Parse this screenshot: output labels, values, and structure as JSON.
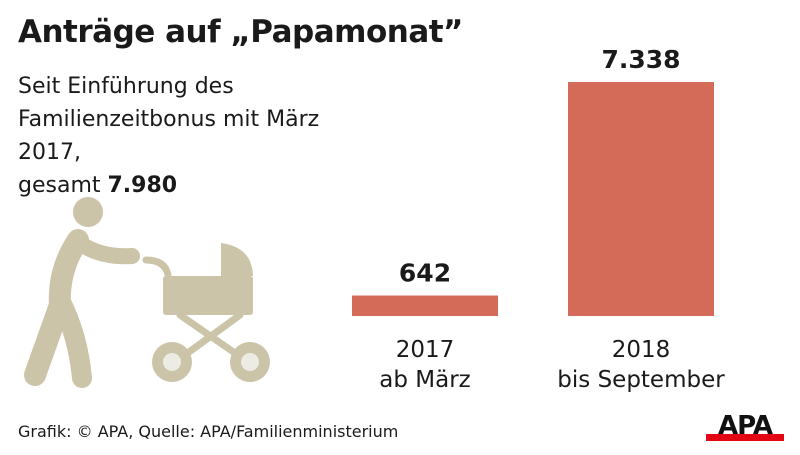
{
  "title": "Anträge auf „Papamonat”",
  "subtitle_line1": "Seit Einführung des",
  "subtitle_line2": "Familienzeitbonus mit März 2017,",
  "subtitle_line3_prefix": "gesamt ",
  "subtitle_total": "7.980",
  "source": "Grafik: © APA, Quelle: APA/Familienministerium",
  "logo_text": "APA",
  "icon": "father-with-stroller-icon",
  "colors": {
    "bar": "#d46a58",
    "icon": "#cbc4a8",
    "logo_red": "#e30613"
  },
  "chart_data": {
    "type": "bar",
    "categories": [
      [
        "2017",
        "ab März"
      ],
      [
        "2018",
        "bis September"
      ]
    ],
    "values": [
      642,
      7338
    ],
    "value_labels": [
      "642",
      "7.338"
    ],
    "ylim": [
      0,
      7338
    ],
    "grid": false
  }
}
